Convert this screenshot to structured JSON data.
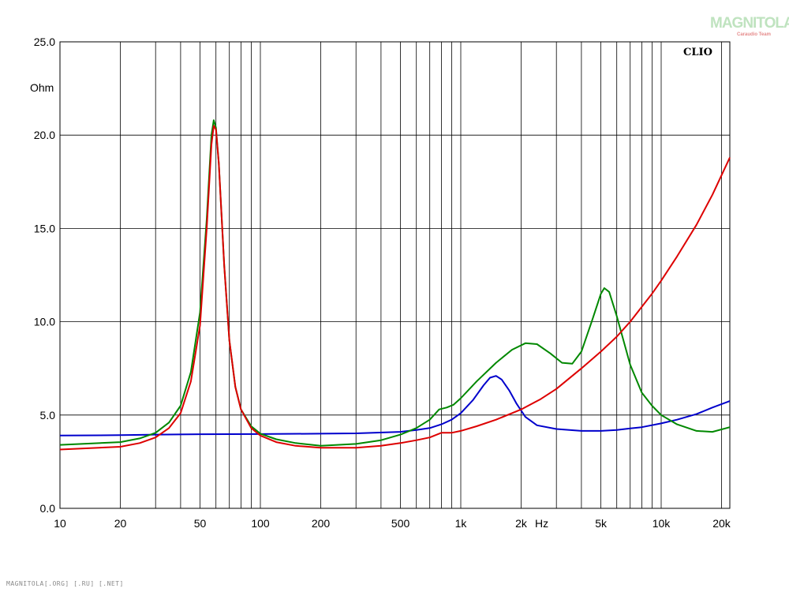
{
  "watermark": {
    "title": "MAGNITOLA",
    "subtitle": "Caraudio Team"
  },
  "footer": "MAGNITOLA[.ORG] [.RU] [.NET]",
  "chart_data": {
    "type": "line",
    "brand_label": "CLIO",
    "ylabel": "Ohm",
    "xlabel": "Hz",
    "x_scale": "log",
    "xlim": [
      10,
      22000
    ],
    "ylim": [
      0,
      25
    ],
    "grid": true,
    "y_ticks": [
      {
        "value": 0,
        "label": "0.0"
      },
      {
        "value": 5,
        "label": "5.0"
      },
      {
        "value": 10,
        "label": "10.0"
      },
      {
        "value": 15,
        "label": "15.0"
      },
      {
        "value": 20,
        "label": "20.0"
      },
      {
        "value": 25,
        "label": "25.0"
      }
    ],
    "x_ticks": [
      {
        "value": 10,
        "label": "10"
      },
      {
        "value": 20,
        "label": "20"
      },
      {
        "value": 50,
        "label": "50"
      },
      {
        "value": 100,
        "label": "100"
      },
      {
        "value": 200,
        "label": "200"
      },
      {
        "value": 500,
        "label": "500"
      },
      {
        "value": 1000,
        "label": "1k"
      },
      {
        "value": 2000,
        "label": "2k"
      },
      {
        "value": 5000,
        "label": "5k"
      },
      {
        "value": 10000,
        "label": "10k"
      },
      {
        "value": 20000,
        "label": "20k"
      }
    ],
    "x_gridlines": [
      20,
      30,
      40,
      50,
      60,
      70,
      80,
      90,
      100,
      200,
      300,
      400,
      500,
      600,
      700,
      800,
      900,
      1000,
      2000,
      3000,
      4000,
      5000,
      6000,
      7000,
      8000,
      9000,
      10000,
      20000
    ],
    "series": [
      {
        "color": "#0000cc",
        "points": [
          [
            10,
            3.9
          ],
          [
            20,
            3.92
          ],
          [
            30,
            3.95
          ],
          [
            50,
            3.97
          ],
          [
            100,
            3.98
          ],
          [
            200,
            4.0
          ],
          [
            300,
            4.02
          ],
          [
            500,
            4.1
          ],
          [
            600,
            4.2
          ],
          [
            700,
            4.3
          ],
          [
            800,
            4.5
          ],
          [
            900,
            4.75
          ],
          [
            1000,
            5.1
          ],
          [
            1150,
            5.8
          ],
          [
            1300,
            6.6
          ],
          [
            1400,
            7.0
          ],
          [
            1500,
            7.1
          ],
          [
            1600,
            6.9
          ],
          [
            1750,
            6.3
          ],
          [
            1900,
            5.6
          ],
          [
            2100,
            4.9
          ],
          [
            2400,
            4.45
          ],
          [
            3000,
            4.25
          ],
          [
            4000,
            4.15
          ],
          [
            5000,
            4.15
          ],
          [
            6000,
            4.2
          ],
          [
            7000,
            4.28
          ],
          [
            8000,
            4.35
          ],
          [
            10000,
            4.55
          ],
          [
            12000,
            4.75
          ],
          [
            15000,
            5.05
          ],
          [
            18000,
            5.4
          ],
          [
            22000,
            5.75
          ]
        ]
      },
      {
        "color": "#008800",
        "points": [
          [
            10,
            3.4
          ],
          [
            20,
            3.55
          ],
          [
            25,
            3.75
          ],
          [
            30,
            4.05
          ],
          [
            35,
            4.6
          ],
          [
            40,
            5.5
          ],
          [
            45,
            7.3
          ],
          [
            50,
            10.5
          ],
          [
            54,
            15.5
          ],
          [
            57,
            20.0
          ],
          [
            58.5,
            20.8
          ],
          [
            60,
            20.4
          ],
          [
            62,
            18.5
          ],
          [
            66,
            13.0
          ],
          [
            70,
            9.0
          ],
          [
            75,
            6.5
          ],
          [
            80,
            5.3
          ],
          [
            90,
            4.4
          ],
          [
            100,
            4.0
          ],
          [
            120,
            3.7
          ],
          [
            150,
            3.5
          ],
          [
            200,
            3.35
          ],
          [
            300,
            3.45
          ],
          [
            400,
            3.65
          ],
          [
            500,
            3.95
          ],
          [
            600,
            4.3
          ],
          [
            700,
            4.75
          ],
          [
            780,
            5.3
          ],
          [
            850,
            5.4
          ],
          [
            920,
            5.55
          ],
          [
            1000,
            5.9
          ],
          [
            1200,
            6.8
          ],
          [
            1500,
            7.8
          ],
          [
            1800,
            8.5
          ],
          [
            2100,
            8.85
          ],
          [
            2400,
            8.8
          ],
          [
            2800,
            8.3
          ],
          [
            3200,
            7.8
          ],
          [
            3600,
            7.75
          ],
          [
            4000,
            8.4
          ],
          [
            4500,
            10.0
          ],
          [
            5000,
            11.5
          ],
          [
            5200,
            11.8
          ],
          [
            5500,
            11.6
          ],
          [
            6000,
            10.3
          ],
          [
            7000,
            7.7
          ],
          [
            8000,
            6.2
          ],
          [
            9000,
            5.5
          ],
          [
            10000,
            5.0
          ],
          [
            12000,
            4.5
          ],
          [
            15000,
            4.15
          ],
          [
            18000,
            4.1
          ],
          [
            22000,
            4.35
          ]
        ]
      },
      {
        "color": "#dd0000",
        "points": [
          [
            10,
            3.15
          ],
          [
            20,
            3.3
          ],
          [
            25,
            3.5
          ],
          [
            30,
            3.8
          ],
          [
            35,
            4.3
          ],
          [
            40,
            5.1
          ],
          [
            45,
            6.8
          ],
          [
            50,
            9.8
          ],
          [
            54,
            15.0
          ],
          [
            57,
            19.5
          ],
          [
            58.5,
            20.5
          ],
          [
            60,
            20.3
          ],
          [
            62,
            18.5
          ],
          [
            66,
            13.0
          ],
          [
            70,
            9.0
          ],
          [
            75,
            6.5
          ],
          [
            80,
            5.3
          ],
          [
            90,
            4.3
          ],
          [
            100,
            3.9
          ],
          [
            120,
            3.55
          ],
          [
            150,
            3.35
          ],
          [
            200,
            3.25
          ],
          [
            300,
            3.25
          ],
          [
            400,
            3.35
          ],
          [
            500,
            3.5
          ],
          [
            600,
            3.65
          ],
          [
            700,
            3.8
          ],
          [
            800,
            4.05
          ],
          [
            900,
            4.05
          ],
          [
            1000,
            4.15
          ],
          [
            1200,
            4.4
          ],
          [
            1500,
            4.75
          ],
          [
            2000,
            5.3
          ],
          [
            2500,
            5.85
          ],
          [
            3000,
            6.4
          ],
          [
            4000,
            7.5
          ],
          [
            5000,
            8.4
          ],
          [
            6000,
            9.2
          ],
          [
            7000,
            10.0
          ],
          [
            8000,
            10.8
          ],
          [
            9000,
            11.5
          ],
          [
            10000,
            12.2
          ],
          [
            12000,
            13.5
          ],
          [
            15000,
            15.2
          ],
          [
            18000,
            16.8
          ],
          [
            22000,
            18.8
          ]
        ]
      }
    ]
  }
}
